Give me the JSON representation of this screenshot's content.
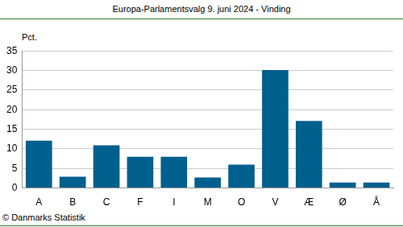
{
  "chart_data": {
    "type": "bar",
    "title": "Europa-Parlamentsvalg 9. juni 2024 - Vinding",
    "y_label": "Pct.",
    "source": "© Danmarks Statistik",
    "categories": [
      "A",
      "B",
      "C",
      "F",
      "I",
      "M",
      "O",
      "V",
      "Æ",
      "Ø",
      "Å"
    ],
    "values": [
      12.1,
      2.9,
      10.9,
      8.0,
      8.0,
      2.7,
      6.0,
      30.1,
      17.1,
      1.4,
      1.4
    ],
    "color": "#00608d",
    "ylim": [
      0,
      35
    ],
    "yticks": [
      0,
      5,
      10,
      15,
      20,
      25,
      30,
      35
    ],
    "grid": true
  }
}
